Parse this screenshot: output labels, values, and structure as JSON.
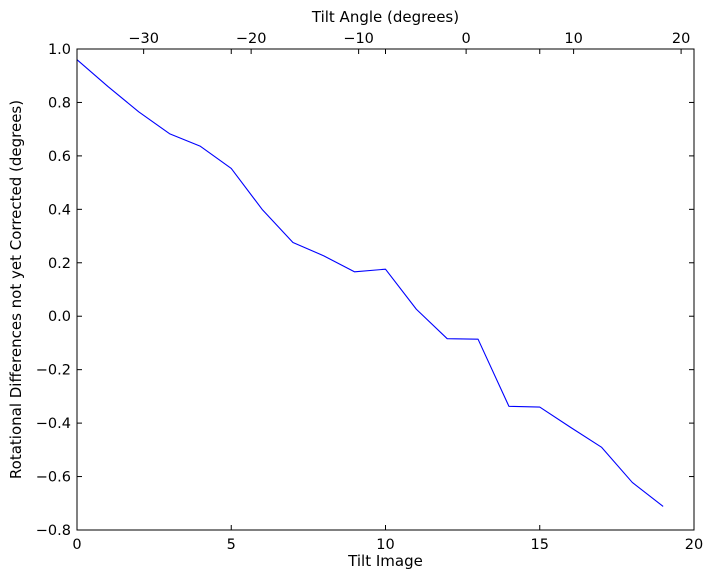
{
  "chart_data": {
    "type": "line",
    "xlabel": "Tilt Image",
    "ylabel": "Rotational Differences not yet Corrected (degrees)",
    "top_xlabel": "Tilt Angle (degrees)",
    "xlim": [
      0,
      20
    ],
    "ylim": [
      -0.8,
      1.0
    ],
    "top_xlim": [
      -36.2,
      21.2
    ],
    "x_ticks": [
      0,
      5,
      10,
      15,
      20
    ],
    "x_tick_labels": [
      "0",
      "5",
      "10",
      "15",
      "20"
    ],
    "y_ticks": [
      1.0,
      0.8,
      0.6,
      0.4,
      0.2,
      0.0,
      -0.2,
      -0.4,
      -0.6,
      -0.8
    ],
    "y_tick_labels": [
      "1.0",
      "0.8",
      "0.6",
      "0.4",
      "0.2",
      "0.0",
      "−0.2",
      "−0.4",
      "−0.6",
      "−0.8"
    ],
    "top_ticks": [
      -30,
      -20,
      -10,
      0,
      10,
      20
    ],
    "top_tick_labels": [
      "−30",
      "−20",
      "−10",
      "0",
      "10",
      "20"
    ],
    "grid": false,
    "series": [
      {
        "color": "#0000ff",
        "x": [
          0,
          1,
          2,
          3,
          4,
          5,
          6,
          7,
          8,
          9,
          10,
          11,
          12,
          13,
          14,
          15,
          16,
          17,
          18,
          19
        ],
        "y": [
          0.96,
          0.86,
          0.765,
          0.683,
          0.636,
          0.553,
          0.4,
          0.276,
          0.226,
          0.166,
          0.176,
          0.026,
          -0.084,
          -0.086,
          -0.337,
          -0.34,
          -0.416,
          -0.49,
          -0.622,
          -0.712
        ]
      }
    ]
  }
}
